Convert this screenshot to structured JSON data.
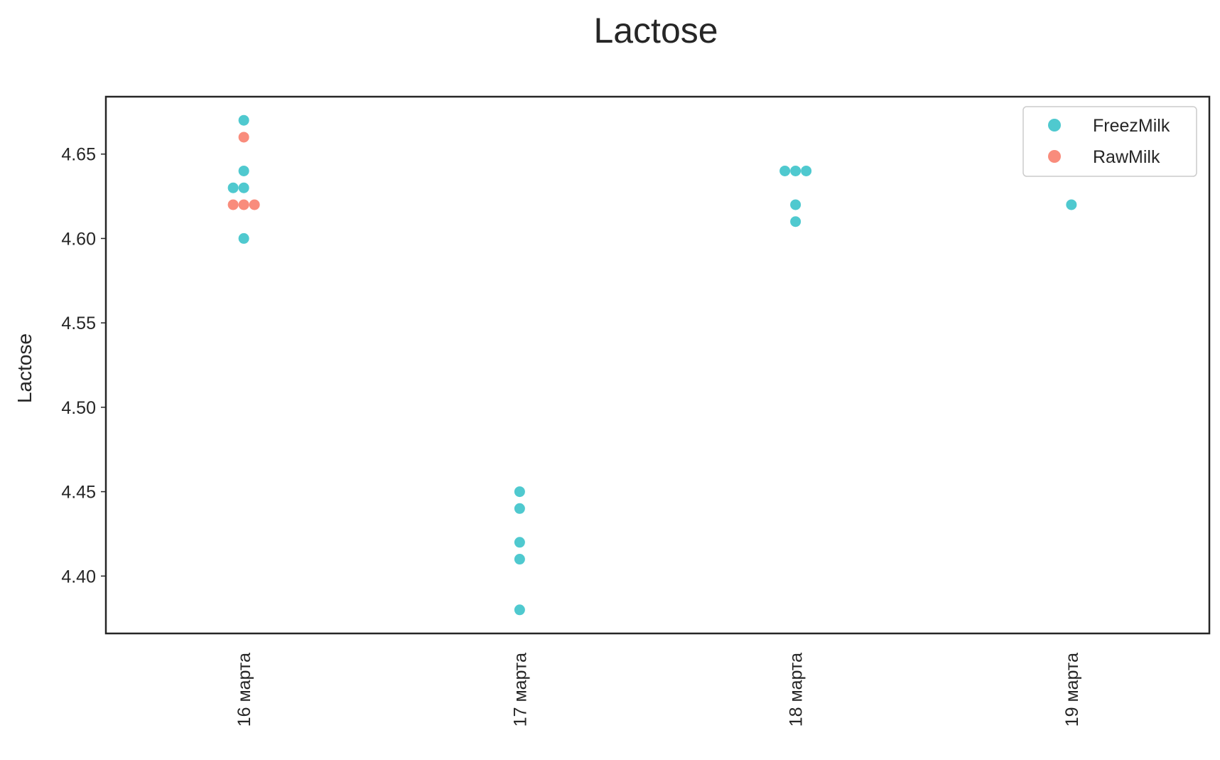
{
  "chart_data": {
    "type": "scatter",
    "title": "Lactose",
    "xlabel": "",
    "ylabel": "Lactose",
    "categories": [
      "16 марта",
      "17 марта",
      "18 марта",
      "19 марта"
    ],
    "ylim": [
      4.366,
      4.684
    ],
    "yticks": [
      "4.40",
      "4.45",
      "4.50",
      "4.55",
      "4.60",
      "4.65"
    ],
    "grid": false,
    "legend_position": "top-right",
    "series": [
      {
        "name": "FreezMilk",
        "color": "#4fc9cf",
        "points": [
          {
            "category": "16 марта",
            "value": 4.67
          },
          {
            "category": "16 марта",
            "value": 4.64
          },
          {
            "category": "16 марта",
            "value": 4.63
          },
          {
            "category": "16 марта",
            "value": 4.63
          },
          {
            "category": "16 марта",
            "value": 4.6
          },
          {
            "category": "17 марта",
            "value": 4.45
          },
          {
            "category": "17 марта",
            "value": 4.44
          },
          {
            "category": "17 марта",
            "value": 4.42
          },
          {
            "category": "17 марта",
            "value": 4.41
          },
          {
            "category": "17 марта",
            "value": 4.38
          },
          {
            "category": "18 марта",
            "value": 4.64
          },
          {
            "category": "18 марта",
            "value": 4.64
          },
          {
            "category": "18 марта",
            "value": 4.64
          },
          {
            "category": "18 марта",
            "value": 4.62
          },
          {
            "category": "18 марта",
            "value": 4.61
          },
          {
            "category": "19 марта",
            "value": 4.62
          }
        ]
      },
      {
        "name": "RawMilk",
        "color": "#f98c7c",
        "points": [
          {
            "category": "16 марта",
            "value": 4.66
          },
          {
            "category": "16 марта",
            "value": 4.62
          },
          {
            "category": "16 марта",
            "value": 4.62
          },
          {
            "category": "16 марта",
            "value": 4.62
          }
        ]
      }
    ]
  }
}
